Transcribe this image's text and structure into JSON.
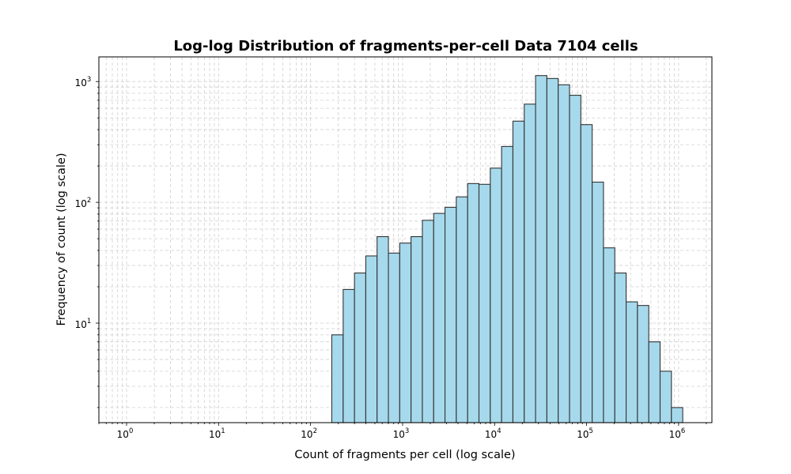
{
  "chart_data": {
    "type": "bar",
    "title": "Log-log Distribution of fragments-per-cell Data 7104 cells",
    "xlabel": "Count of fragments per cell (log scale)",
    "ylabel": "Frequency of count (log scale)",
    "x_scale": "log",
    "y_scale": "log",
    "xlim": [
      0.5,
      2300000
    ],
    "ylim": [
      1.5,
      1600
    ],
    "grid": "major and minor, dashed, both axes",
    "bar_color": "#a6d9ec",
    "bar_edge_color": "#333333",
    "x_ticks": [
      {
        "base": "10",
        "exp": "0",
        "value": 1
      },
      {
        "base": "10",
        "exp": "1",
        "value": 10
      },
      {
        "base": "10",
        "exp": "2",
        "value": 100
      },
      {
        "base": "10",
        "exp": "3",
        "value": 1000
      },
      {
        "base": "10",
        "exp": "4",
        "value": 10000
      },
      {
        "base": "10",
        "exp": "5",
        "value": 100000
      },
      {
        "base": "10",
        "exp": "6",
        "value": 1000000
      }
    ],
    "y_ticks": [
      {
        "base": "10",
        "exp": "1",
        "value": 10
      },
      {
        "base": "10",
        "exp": "2",
        "value": 100
      },
      {
        "base": "10",
        "exp": "3",
        "value": 1000
      }
    ],
    "bin_edges": [
      170,
      226,
      300,
      398,
      528,
      701,
      931,
      1235,
      1640,
      2177,
      2890,
      3836,
      5093,
      6761,
      8976,
      11915,
      15818,
      20999,
      27876,
      37007,
      49128,
      65219,
      86579,
      114934,
      152577,
      202549,
      268887,
      356954,
      473864,
      629066,
      835097,
      1108606
    ],
    "counts": [
      8,
      19,
      26,
      36,
      52,
      38,
      46,
      52,
      71,
      81,
      91,
      111,
      143,
      141,
      192,
      290,
      470,
      650,
      1120,
      1060,
      940,
      770,
      440,
      147,
      42,
      26,
      15,
      14,
      7,
      4,
      2
    ]
  }
}
